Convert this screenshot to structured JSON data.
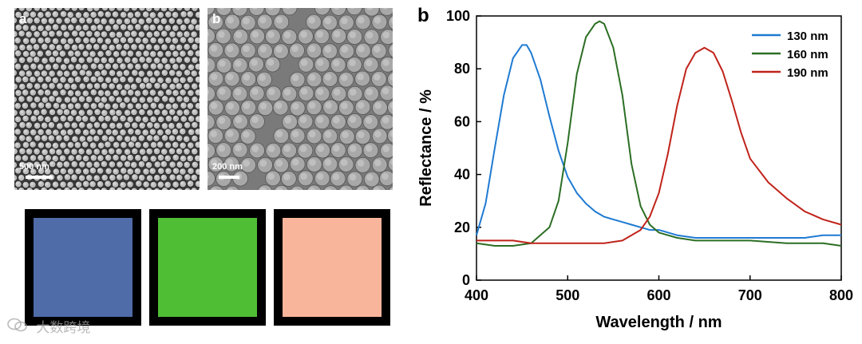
{
  "sem_a": {
    "panel_letter": "a",
    "scale_label": "500 nm"
  },
  "sem_b": {
    "panel_letter": "b",
    "scale_label": "200 nm"
  },
  "swatches": [
    {
      "color": "#4f6ba8",
      "border": "#000000"
    },
    {
      "color": "#4fbe35",
      "border": "#000000"
    },
    {
      "color": "#f9b59b",
      "border": "#000000"
    }
  ],
  "watermark": {
    "icon": "wechat-logo-icon",
    "text": "大数跨境"
  },
  "chart_data": {
    "type": "line",
    "panel_label": "b",
    "title": "",
    "xlabel": "Wavelength / nm",
    "ylabel": "Reflectance / %",
    "xlim": [
      400,
      800
    ],
    "ylim": [
      0,
      100
    ],
    "xticks": [
      400,
      500,
      600,
      700,
      800
    ],
    "yticks": [
      0,
      20,
      40,
      60,
      80,
      100
    ],
    "grid": false,
    "legend_position": "top-right",
    "series": [
      {
        "name": "130 nm",
        "color": "#1f7ad2",
        "x": [
          400,
          410,
          420,
          430,
          440,
          450,
          455,
          460,
          470,
          480,
          490,
          500,
          510,
          520,
          530,
          540,
          550,
          560,
          570,
          580,
          590,
          600,
          620,
          640,
          660,
          680,
          700,
          720,
          740,
          760,
          780,
          800
        ],
        "y": [
          17,
          29,
          50,
          70,
          84,
          89,
          89,
          86,
          76,
          62,
          49,
          39,
          33,
          29,
          26,
          24,
          23,
          22,
          21,
          20,
          19,
          19,
          17,
          16,
          16,
          16,
          16,
          16,
          16,
          16,
          17,
          17
        ]
      },
      {
        "name": "160 nm",
        "color": "#2c6e24",
        "x": [
          400,
          420,
          440,
          460,
          480,
          490,
          500,
          510,
          520,
          530,
          535,
          540,
          550,
          560,
          570,
          580,
          590,
          600,
          620,
          640,
          660,
          680,
          700,
          740,
          780,
          800
        ],
        "y": [
          14,
          13,
          13,
          14,
          20,
          30,
          52,
          78,
          92,
          97,
          98,
          97,
          88,
          70,
          44,
          28,
          21,
          18,
          16,
          15,
          15,
          15,
          15,
          14,
          14,
          13
        ]
      },
      {
        "name": "190 nm",
        "color": "#c0231a",
        "x": [
          400,
          420,
          440,
          460,
          480,
          500,
          520,
          540,
          560,
          580,
          590,
          600,
          610,
          620,
          630,
          640,
          650,
          660,
          670,
          680,
          690,
          700,
          720,
          740,
          760,
          780,
          800
        ],
        "y": [
          15,
          15,
          15,
          14,
          14,
          14,
          14,
          14,
          15,
          19,
          24,
          33,
          48,
          66,
          80,
          86,
          88,
          86,
          79,
          68,
          56,
          46,
          37,
          31,
          26,
          23,
          21
        ]
      }
    ]
  }
}
